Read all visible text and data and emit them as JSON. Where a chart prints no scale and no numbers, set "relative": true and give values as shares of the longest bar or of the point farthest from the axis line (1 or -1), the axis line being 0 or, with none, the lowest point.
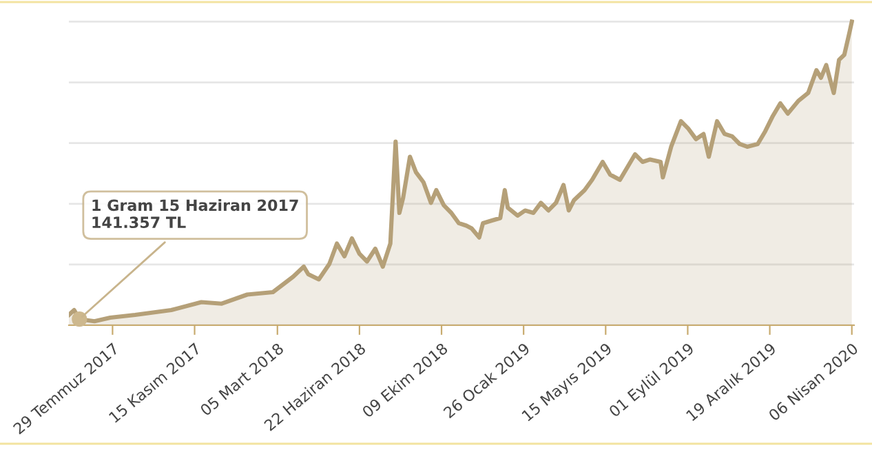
{
  "chart_data": {
    "type": "area",
    "relative": true,
    "color": "#b5a078",
    "grid": "y",
    "x": [
      "2017-06-01",
      "2017-06-08",
      "2017-06-15",
      "2017-07-05",
      "2017-07-26",
      "2017-08-28",
      "2017-10-15",
      "2017-11-24",
      "2017-12-21",
      "2018-01-24",
      "2018-02-27",
      "2018-03-26",
      "2018-04-09",
      "2018-04-15",
      "2018-04-29",
      "2018-05-13",
      "2018-05-23",
      "2018-06-02",
      "2018-06-12",
      "2018-06-22",
      "2018-07-02",
      "2018-07-13",
      "2018-07-23",
      "2018-08-02",
      "2018-08-09",
      "2018-08-14",
      "2018-08-19",
      "2018-08-28",
      "2018-09-05",
      "2018-09-15",
      "2018-09-25",
      "2018-10-02",
      "2018-10-12",
      "2018-10-22",
      "2018-11-01",
      "2018-11-11",
      "2018-11-18",
      "2018-11-28",
      "2018-12-03",
      "2018-12-15",
      "2018-12-26",
      "2019-01-01",
      "2019-01-05",
      "2019-01-18",
      "2019-01-28",
      "2019-02-08",
      "2019-02-18",
      "2019-02-28",
      "2019-03-10",
      "2019-03-20",
      "2019-03-27",
      "2019-04-03",
      "2019-04-17",
      "2019-04-27",
      "2019-05-11",
      "2019-05-21",
      "2019-06-03",
      "2019-06-13",
      "2019-06-23",
      "2019-07-03",
      "2019-07-13",
      "2019-07-27",
      "2019-07-30",
      "2019-08-10",
      "2019-08-23",
      "2019-09-02",
      "2019-09-12",
      "2019-09-22",
      "2019-09-29",
      "2019-10-10",
      "2019-10-20",
      "2019-10-30",
      "2019-11-09",
      "2019-11-19",
      "2019-12-03",
      "2019-12-13",
      "2019-12-23",
      "2020-01-02",
      "2020-01-12",
      "2020-01-26",
      "2020-02-08",
      "2020-02-19",
      "2020-02-25",
      "2020-03-03",
      "2020-03-13",
      "2020-03-20",
      "2020-03-27",
      "2020-04-03",
      "2020-04-06"
    ],
    "values": [
      0.034,
      0.05,
      0.02,
      0.013,
      0.025,
      0.034,
      0.05,
      0.076,
      0.071,
      0.101,
      0.109,
      0.16,
      0.193,
      0.168,
      0.151,
      0.202,
      0.269,
      0.227,
      0.286,
      0.235,
      0.21,
      0.252,
      0.193,
      0.269,
      0.605,
      0.37,
      0.42,
      0.555,
      0.504,
      0.471,
      0.403,
      0.445,
      0.395,
      0.37,
      0.336,
      0.328,
      0.319,
      0.289,
      0.336,
      0.345,
      0.353,
      0.445,
      0.387,
      0.361,
      0.378,
      0.37,
      0.403,
      0.378,
      0.403,
      0.462,
      0.378,
      0.412,
      0.445,
      0.479,
      0.538,
      0.496,
      0.479,
      0.521,
      0.563,
      0.538,
      0.546,
      0.538,
      0.487,
      0.588,
      0.672,
      0.647,
      0.613,
      0.63,
      0.555,
      0.672,
      0.63,
      0.622,
      0.597,
      0.588,
      0.597,
      0.639,
      0.689,
      0.731,
      0.697,
      0.739,
      0.765,
      0.84,
      0.815,
      0.857,
      0.765,
      0.874,
      0.891,
      0.966,
      1.0
    ],
    "xlim": [
      "2017-06-01",
      "2020-04-09"
    ],
    "xticks": [
      {
        "value": "2017-07-29",
        "label": "29 Temmuz 2017"
      },
      {
        "value": "2017-11-15",
        "label": "15 Kasım 2017"
      },
      {
        "value": "2018-03-05",
        "label": "05 Mart 2018"
      },
      {
        "value": "2018-06-22",
        "label": "22 Haziran 2018"
      },
      {
        "value": "2018-10-09",
        "label": "09 Ekim 2018"
      },
      {
        "value": "2019-01-26",
        "label": "26 Ocak 2019"
      },
      {
        "value": "2019-05-15",
        "label": "15 Mayıs 2019"
      },
      {
        "value": "2019-09-01",
        "label": "01 Eylül 2019"
      },
      {
        "value": "2019-12-19",
        "label": "19 Aralık 2019"
      },
      {
        "value": "2020-04-06",
        "label": "06 Nisan 2020"
      }
    ],
    "annotations": [
      {
        "text": "1 Gram 15 Haziran 2017\n141.357 TL",
        "x": "2017-06-15",
        "y": 0.02
      }
    ]
  }
}
